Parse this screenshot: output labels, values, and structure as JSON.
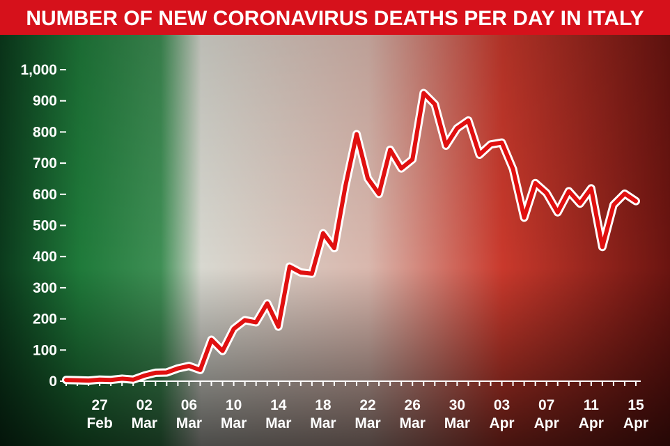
{
  "chart_data": {
    "type": "line",
    "title": "NUMBER OF NEW CORONAVIRUS DEATHS PER DAY IN ITALY",
    "categories": [
      null,
      null,
      null,
      "27 Feb",
      null,
      null,
      null,
      "02 Mar",
      null,
      null,
      null,
      "06 Mar",
      null,
      null,
      null,
      "10 Mar",
      null,
      null,
      null,
      "14 Mar",
      null,
      null,
      null,
      "18 Mar",
      null,
      null,
      null,
      "22 Mar",
      null,
      null,
      null,
      "26 Mar",
      null,
      null,
      null,
      "30 Mar",
      null,
      null,
      null,
      "03 Apr",
      null,
      null,
      null,
      "07 Apr",
      null,
      null,
      null,
      "11 Apr",
      null,
      null,
      null,
      "15 Apr"
    ],
    "series": [
      {
        "name": "Deaths",
        "color": "#e01010",
        "values": [
          4,
          3,
          2,
          5,
          4,
          8,
          5,
          18,
          27,
          28,
          41,
          49,
          36,
          133,
          97,
          168,
          196,
          189,
          250,
          175,
          368,
          349,
          345,
          475,
          427,
          627,
          793,
          651,
          601,
          743,
          683,
          712,
          925,
          889,
          756,
          812,
          837,
          727,
          760,
          766,
          681,
          525,
          636,
          604,
          542,
          610,
          570,
          619,
          431,
          566,
          602,
          578
        ]
      }
    ],
    "ylim": [
      0,
      1000
    ],
    "yticks": [
      0,
      100,
      200,
      300,
      400,
      500,
      600,
      700,
      800,
      900,
      {
        "value": 1000,
        "label": "1,000"
      }
    ]
  }
}
